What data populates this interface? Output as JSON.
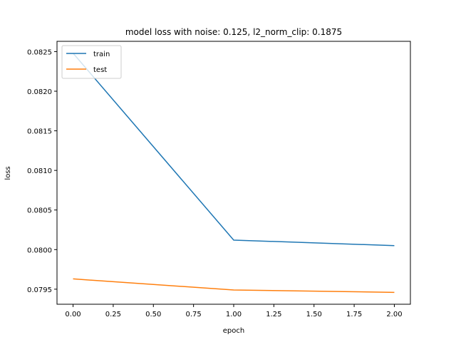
{
  "chart_data": {
    "type": "line",
    "title": "model loss with noise: 0.125, l2_norm_clip: 0.1875",
    "xlabel": "epoch",
    "ylabel": "loss",
    "x": [
      0.0,
      1.0,
      2.0
    ],
    "series": [
      {
        "name": "train",
        "color": "#1f77b4",
        "values": [
          0.08248,
          0.08012,
          0.08005
        ]
      },
      {
        "name": "test",
        "color": "#ff7f0e",
        "values": [
          0.07963,
          0.07949,
          0.07946
        ]
      }
    ],
    "xlim": [
      -0.1,
      2.1
    ],
    "ylim": [
      0.07931,
      0.08263
    ],
    "xticks": [
      0.0,
      0.25,
      0.5,
      0.75,
      1.0,
      1.25,
      1.5,
      1.75,
      2.0
    ],
    "xtick_labels": [
      "0.00",
      "0.25",
      "0.50",
      "0.75",
      "1.00",
      "1.25",
      "1.50",
      "1.75",
      "2.00"
    ],
    "yticks": [
      0.0795,
      0.08,
      0.0805,
      0.081,
      0.0815,
      0.082,
      0.0825
    ],
    "ytick_labels": [
      "0.0795",
      "0.0800",
      "0.0805",
      "0.0810",
      "0.0815",
      "0.0820",
      "0.0825"
    ],
    "grid": false,
    "legend_position": "upper left"
  }
}
